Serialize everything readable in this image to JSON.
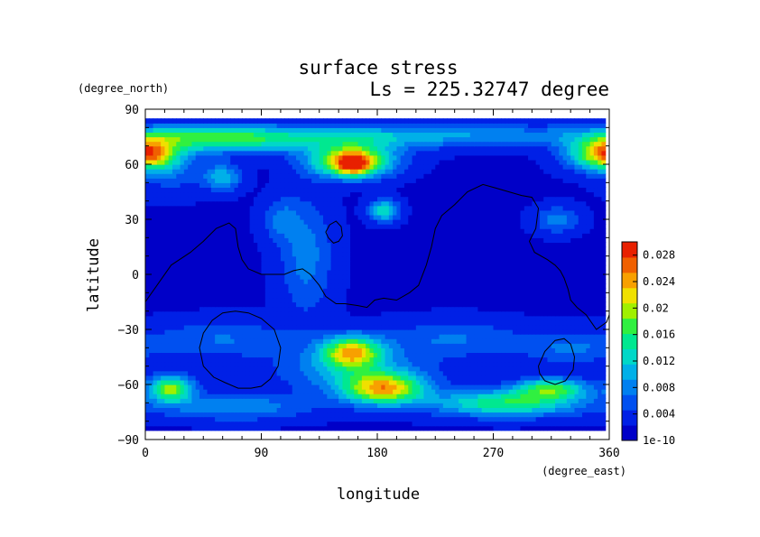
{
  "chart_data": {
    "type": "heatmap",
    "title": "surface stress",
    "subtitle": "Ls = 225.32747 degree",
    "xlabel": "longitude",
    "ylabel": "latitude",
    "x_unit": "(degree_east)",
    "y_unit": "(degree_north)",
    "xlim": [
      0,
      360
    ],
    "ylim": [
      -90,
      90
    ],
    "x_ticks": [
      0,
      90,
      180,
      270,
      360
    ],
    "y_ticks": [
      -90,
      -60,
      -30,
      0,
      30,
      60,
      90
    ],
    "x_tick_labels": [
      "0",
      "90",
      "180",
      "270",
      "360"
    ],
    "y_tick_labels": [
      "−90",
      "−60",
      "−30",
      "0",
      "30",
      "60",
      "90"
    ],
    "colorbar": {
      "ticks": [
        1e-10,
        0.004,
        0.008,
        0.012,
        0.016,
        0.02,
        0.024,
        0.028
      ],
      "tick_labels": [
        "1e-10",
        "0.004",
        "0.008",
        "0.012",
        "0.016",
        "0.02",
        "0.024",
        "0.028"
      ],
      "range": [
        0,
        0.03
      ],
      "colors": [
        "#0000c8",
        "#0020e6",
        "#0050f0",
        "#0080f0",
        "#00b0e8",
        "#00d8c8",
        "#00e890",
        "#30f040",
        "#a0f000",
        "#f0e000",
        "#f8a000",
        "#f06000",
        "#e82000"
      ]
    },
    "background_value": 0.002,
    "data_extent_lat": [
      -85,
      85
    ],
    "blobs": [
      {
        "lon": 160,
        "lat": 62,
        "slon": 22,
        "slat": 6,
        "value": 0.022
      },
      {
        "lon": 162,
        "lat": 60,
        "slon": 9,
        "slat": 4,
        "value": 0.012
      },
      {
        "lon": 60,
        "lat": 74,
        "slon": 40,
        "slat": 5,
        "value": 0.012
      },
      {
        "lon": 5,
        "lat": 66,
        "slon": 14,
        "slat": 6,
        "value": 0.012
      },
      {
        "lon": 350,
        "lat": 66,
        "slon": 18,
        "slat": 6,
        "value": 0.014
      },
      {
        "lon": 270,
        "lat": 76,
        "slon": 120,
        "slat": 4,
        "value": 0.006
      },
      {
        "lon": 150,
        "lat": 74,
        "slon": 60,
        "slat": 5,
        "value": 0.006
      },
      {
        "lon": 60,
        "lat": 53,
        "slon": 10,
        "slat": 5,
        "value": 0.009
      },
      {
        "lon": 185,
        "lat": 35,
        "slon": 8,
        "slat": 4,
        "value": 0.012
      },
      {
        "lon": 125,
        "lat": 10,
        "slon": 14,
        "slat": 22,
        "value": 0.006
      },
      {
        "lon": 105,
        "lat": 30,
        "slon": 10,
        "slat": 8,
        "value": 0.005
      },
      {
        "lon": 320,
        "lat": 30,
        "slon": 12,
        "slat": 5,
        "value": 0.006
      },
      {
        "lon": 20,
        "lat": 60,
        "slon": 18,
        "slat": 10,
        "value": 0.005
      },
      {
        "lon": 160,
        "lat": -42,
        "slon": 16,
        "slat": 6,
        "value": 0.019
      },
      {
        "lon": 185,
        "lat": -62,
        "slon": 22,
        "slat": 6,
        "value": 0.02
      },
      {
        "lon": 160,
        "lat": -52,
        "slon": 40,
        "slat": 9,
        "value": 0.007
      },
      {
        "lon": 20,
        "lat": -62,
        "slon": 12,
        "slat": 5,
        "value": 0.017
      },
      {
        "lon": 70,
        "lat": -72,
        "slon": 40,
        "slat": 5,
        "value": 0.007
      },
      {
        "lon": 280,
        "lat": -70,
        "slon": 40,
        "slat": 5,
        "value": 0.014
      },
      {
        "lon": 315,
        "lat": -62,
        "slon": 20,
        "slat": 4,
        "value": 0.014
      },
      {
        "lon": 240,
        "lat": -35,
        "slon": 40,
        "slat": 7,
        "value": 0.005
      },
      {
        "lon": 60,
        "lat": -35,
        "slon": 40,
        "slat": 7,
        "value": 0.005
      },
      {
        "lon": 330,
        "lat": -40,
        "slon": 25,
        "slat": 6,
        "value": 0.005
      }
    ],
    "contours": [
      [
        [
          0,
          -15
        ],
        [
          10,
          -5
        ],
        [
          20,
          5
        ],
        [
          35,
          12
        ],
        [
          45,
          18
        ],
        [
          55,
          25
        ],
        [
          65,
          28
        ],
        [
          70,
          25
        ],
        [
          72,
          15
        ],
        [
          75,
          8
        ],
        [
          80,
          3
        ],
        [
          90,
          0
        ],
        [
          100,
          0
        ],
        [
          108,
          0
        ],
        [
          115,
          2
        ],
        [
          122,
          3
        ],
        [
          128,
          0
        ],
        [
          135,
          -6
        ],
        [
          140,
          -12
        ],
        [
          148,
          -16
        ],
        [
          155,
          -16
        ],
        [
          165,
          -17
        ],
        [
          172,
          -18
        ],
        [
          178,
          -14
        ],
        [
          185,
          -13
        ],
        [
          195,
          -14
        ],
        [
          205,
          -10
        ],
        [
          212,
          -6
        ],
        [
          218,
          5
        ],
        [
          222,
          15
        ],
        [
          225,
          25
        ],
        [
          230,
          32
        ],
        [
          240,
          38
        ],
        [
          250,
          45
        ],
        [
          262,
          49
        ],
        [
          272,
          47
        ],
        [
          282,
          45
        ],
        [
          292,
          43
        ],
        [
          300,
          42
        ],
        [
          305,
          36
        ],
        [
          303,
          25
        ],
        [
          298,
          18
        ],
        [
          302,
          12
        ],
        [
          312,
          8
        ],
        [
          318,
          5
        ],
        [
          322,
          2
        ],
        [
          325,
          -2
        ],
        [
          328,
          -8
        ],
        [
          330,
          -14
        ],
        [
          335,
          -18
        ],
        [
          342,
          -22
        ],
        [
          350,
          -30
        ],
        [
          358,
          -26
        ],
        [
          360,
          -22
        ]
      ],
      [
        [
          142,
          20
        ],
        [
          140,
          23
        ],
        [
          143,
          27
        ],
        [
          148,
          29
        ],
        [
          152,
          26
        ],
        [
          153,
          21
        ],
        [
          150,
          18
        ],
        [
          146,
          17
        ],
        [
          142,
          20
        ]
      ],
      [
        [
          45,
          -50
        ],
        [
          42,
          -40
        ],
        [
          45,
          -32
        ],
        [
          52,
          -25
        ],
        [
          60,
          -21
        ],
        [
          70,
          -20
        ],
        [
          80,
          -21
        ],
        [
          90,
          -24
        ],
        [
          100,
          -30
        ],
        [
          105,
          -40
        ],
        [
          103,
          -50
        ],
        [
          97,
          -57
        ],
        [
          90,
          -61
        ],
        [
          82,
          -62
        ],
        [
          72,
          -62
        ],
        [
          62,
          -59
        ],
        [
          53,
          -56
        ],
        [
          45,
          -50
        ]
      ],
      [
        [
          305,
          -50
        ],
        [
          310,
          -42
        ],
        [
          318,
          -36
        ],
        [
          325,
          -35
        ],
        [
          330,
          -38
        ],
        [
          333,
          -45
        ],
        [
          332,
          -52
        ],
        [
          326,
          -58
        ],
        [
          318,
          -60
        ],
        [
          310,
          -58
        ],
        [
          306,
          -54
        ],
        [
          305,
          -50
        ]
      ]
    ]
  }
}
